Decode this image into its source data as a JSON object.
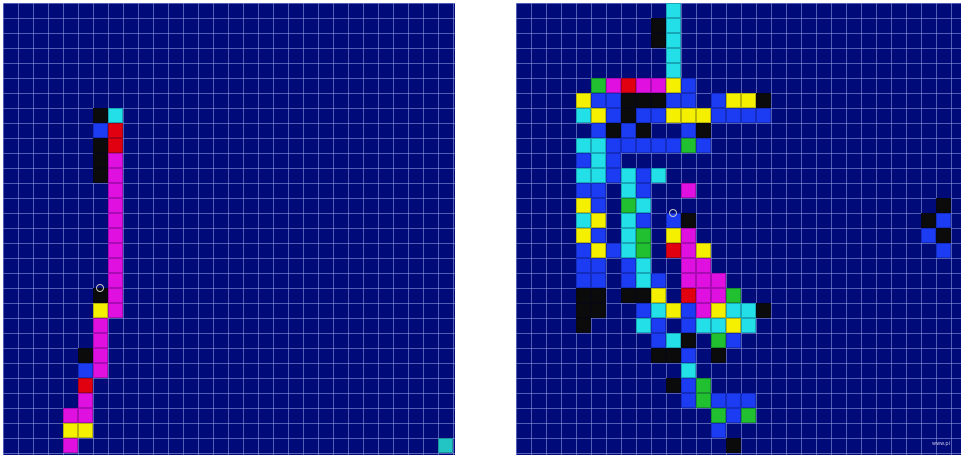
{
  "palette": {
    "k": "#0b0b0b",
    "c": "#22dfe8",
    "r": "#e00010",
    "m": "#e010e0",
    "y": "#f4f000",
    "b": "#1b3cf2",
    "g": "#20c030",
    "t": "#22c4c4"
  },
  "panels": [
    {
      "id": "left",
      "cells": [
        {
          "x": 6,
          "y": 7,
          "c": "k"
        },
        {
          "x": 7,
          "y": 7,
          "c": "c"
        },
        {
          "x": 6,
          "y": 8,
          "c": "b"
        },
        {
          "x": 7,
          "y": 8,
          "c": "r"
        },
        {
          "x": 6,
          "y": 9,
          "c": "k"
        },
        {
          "x": 7,
          "y": 9,
          "c": "r"
        },
        {
          "x": 6,
          "y": 10,
          "c": "k"
        },
        {
          "x": 7,
          "y": 10,
          "c": "m"
        },
        {
          "x": 6,
          "y": 11,
          "c": "k"
        },
        {
          "x": 7,
          "y": 11,
          "c": "m"
        },
        {
          "x": 7,
          "y": 12,
          "c": "m"
        },
        {
          "x": 7,
          "y": 13,
          "c": "m"
        },
        {
          "x": 7,
          "y": 14,
          "c": "m"
        },
        {
          "x": 7,
          "y": 15,
          "c": "m"
        },
        {
          "x": 7,
          "y": 16,
          "c": "m"
        },
        {
          "x": 7,
          "y": 17,
          "c": "m"
        },
        {
          "x": 7,
          "y": 18,
          "c": "m"
        },
        {
          "x": 6,
          "y": 19,
          "c": "k"
        },
        {
          "x": 7,
          "y": 19,
          "c": "m"
        },
        {
          "x": 6,
          "y": 20,
          "c": "y"
        },
        {
          "x": 7,
          "y": 20,
          "c": "m"
        },
        {
          "x": 6,
          "y": 21,
          "c": "m"
        },
        {
          "x": 6,
          "y": 22,
          "c": "m"
        },
        {
          "x": 5,
          "y": 23,
          "c": "k"
        },
        {
          "x": 6,
          "y": 23,
          "c": "m"
        },
        {
          "x": 5,
          "y": 24,
          "c": "b"
        },
        {
          "x": 6,
          "y": 24,
          "c": "m"
        },
        {
          "x": 5,
          "y": 25,
          "c": "r"
        },
        {
          "x": 5,
          "y": 26,
          "c": "m"
        },
        {
          "x": 4,
          "y": 27,
          "c": "m"
        },
        {
          "x": 5,
          "y": 27,
          "c": "m"
        },
        {
          "x": 4,
          "y": 28,
          "c": "y"
        },
        {
          "x": 5,
          "y": 28,
          "c": "y"
        },
        {
          "x": 4,
          "y": 29,
          "c": "m"
        },
        {
          "x": 29,
          "y": 29,
          "c": "t"
        }
      ],
      "markers": [
        {
          "x": 6,
          "y": 19
        }
      ]
    },
    {
      "id": "right",
      "cells": [
        {
          "x": 10,
          "y": 0,
          "c": "c"
        },
        {
          "x": 9,
          "y": 1,
          "c": "k"
        },
        {
          "x": 10,
          "y": 1,
          "c": "c"
        },
        {
          "x": 9,
          "y": 2,
          "c": "k"
        },
        {
          "x": 10,
          "y": 2,
          "c": "c"
        },
        {
          "x": 10,
          "y": 3,
          "c": "c"
        },
        {
          "x": 10,
          "y": 4,
          "c": "c"
        },
        {
          "x": 7,
          "y": 5,
          "c": "r"
        },
        {
          "x": 8,
          "y": 5,
          "c": "m"
        },
        {
          "x": 9,
          "y": 5,
          "c": "m"
        },
        {
          "x": 10,
          "y": 5,
          "c": "y"
        },
        {
          "x": 11,
          "y": 5,
          "c": "b"
        },
        {
          "x": 5,
          "y": 5,
          "c": "g"
        },
        {
          "x": 6,
          "y": 5,
          "c": "m"
        },
        {
          "x": 4,
          "y": 6,
          "c": "y"
        },
        {
          "x": 5,
          "y": 6,
          "c": "b"
        },
        {
          "x": 6,
          "y": 6,
          "c": "b"
        },
        {
          "x": 7,
          "y": 6,
          "c": "k"
        },
        {
          "x": 8,
          "y": 6,
          "c": "k"
        },
        {
          "x": 9,
          "y": 6,
          "c": "k"
        },
        {
          "x": 10,
          "y": 6,
          "c": "b"
        },
        {
          "x": 11,
          "y": 6,
          "c": "b"
        },
        {
          "x": 13,
          "y": 6,
          "c": "b"
        },
        {
          "x": 14,
          "y": 6,
          "c": "y"
        },
        {
          "x": 15,
          "y": 6,
          "c": "y"
        },
        {
          "x": 16,
          "y": 6,
          "c": "k"
        },
        {
          "x": 4,
          "y": 7,
          "c": "c"
        },
        {
          "x": 5,
          "y": 7,
          "c": "y"
        },
        {
          "x": 6,
          "y": 7,
          "c": "b"
        },
        {
          "x": 7,
          "y": 7,
          "c": "k"
        },
        {
          "x": 8,
          "y": 7,
          "c": "b"
        },
        {
          "x": 9,
          "y": 7,
          "c": "b"
        },
        {
          "x": 10,
          "y": 7,
          "c": "y"
        },
        {
          "x": 11,
          "y": 7,
          "c": "y"
        },
        {
          "x": 12,
          "y": 7,
          "c": "y"
        },
        {
          "x": 13,
          "y": 7,
          "c": "b"
        },
        {
          "x": 14,
          "y": 7,
          "c": "b"
        },
        {
          "x": 15,
          "y": 7,
          "c": "b"
        },
        {
          "x": 16,
          "y": 7,
          "c": "b"
        },
        {
          "x": 5,
          "y": 8,
          "c": "b"
        },
        {
          "x": 6,
          "y": 8,
          "c": "k"
        },
        {
          "x": 7,
          "y": 8,
          "c": "b"
        },
        {
          "x": 8,
          "y": 8,
          "c": "k"
        },
        {
          "x": 11,
          "y": 8,
          "c": "b"
        },
        {
          "x": 12,
          "y": 8,
          "c": "k"
        },
        {
          "x": 4,
          "y": 9,
          "c": "c"
        },
        {
          "x": 5,
          "y": 9,
          "c": "c"
        },
        {
          "x": 6,
          "y": 9,
          "c": "b"
        },
        {
          "x": 7,
          "y": 9,
          "c": "b"
        },
        {
          "x": 8,
          "y": 9,
          "c": "b"
        },
        {
          "x": 9,
          "y": 9,
          "c": "b"
        },
        {
          "x": 10,
          "y": 9,
          "c": "b"
        },
        {
          "x": 11,
          "y": 9,
          "c": "g"
        },
        {
          "x": 12,
          "y": 9,
          "c": "b"
        },
        {
          "x": 4,
          "y": 10,
          "c": "b"
        },
        {
          "x": 5,
          "y": 10,
          "c": "c"
        },
        {
          "x": 6,
          "y": 10,
          "c": "b"
        },
        {
          "x": 4,
          "y": 11,
          "c": "c"
        },
        {
          "x": 5,
          "y": 11,
          "c": "c"
        },
        {
          "x": 6,
          "y": 11,
          "c": "b"
        },
        {
          "x": 7,
          "y": 11,
          "c": "c"
        },
        {
          "x": 8,
          "y": 11,
          "c": "b"
        },
        {
          "x": 9,
          "y": 11,
          "c": "c"
        },
        {
          "x": 4,
          "y": 12,
          "c": "b"
        },
        {
          "x": 5,
          "y": 12,
          "c": "b"
        },
        {
          "x": 7,
          "y": 12,
          "c": "c"
        },
        {
          "x": 8,
          "y": 12,
          "c": "b"
        },
        {
          "x": 4,
          "y": 13,
          "c": "y"
        },
        {
          "x": 5,
          "y": 13,
          "c": "b"
        },
        {
          "x": 7,
          "y": 13,
          "c": "g"
        },
        {
          "x": 8,
          "y": 13,
          "c": "c"
        },
        {
          "x": 4,
          "y": 14,
          "c": "c"
        },
        {
          "x": 5,
          "y": 14,
          "c": "y"
        },
        {
          "x": 7,
          "y": 14,
          "c": "c"
        },
        {
          "x": 8,
          "y": 14,
          "c": "b"
        },
        {
          "x": 10,
          "y": 14,
          "c": "b"
        },
        {
          "x": 11,
          "y": 14,
          "c": "k"
        },
        {
          "x": 4,
          "y": 15,
          "c": "y"
        },
        {
          "x": 5,
          "y": 15,
          "c": "b"
        },
        {
          "x": 7,
          "y": 15,
          "c": "c"
        },
        {
          "x": 8,
          "y": 15,
          "c": "g"
        },
        {
          "x": 10,
          "y": 15,
          "c": "y"
        },
        {
          "x": 11,
          "y": 15,
          "c": "m"
        },
        {
          "x": 4,
          "y": 16,
          "c": "b"
        },
        {
          "x": 5,
          "y": 16,
          "c": "y"
        },
        {
          "x": 6,
          "y": 16,
          "c": "b"
        },
        {
          "x": 7,
          "y": 16,
          "c": "c"
        },
        {
          "x": 8,
          "y": 16,
          "c": "g"
        },
        {
          "x": 10,
          "y": 16,
          "c": "r"
        },
        {
          "x": 11,
          "y": 16,
          "c": "m"
        },
        {
          "x": 12,
          "y": 16,
          "c": "y"
        },
        {
          "x": 4,
          "y": 17,
          "c": "b"
        },
        {
          "x": 5,
          "y": 17,
          "c": "b"
        },
        {
          "x": 7,
          "y": 17,
          "c": "b"
        },
        {
          "x": 8,
          "y": 17,
          "c": "c"
        },
        {
          "x": 11,
          "y": 17,
          "c": "m"
        },
        {
          "x": 12,
          "y": 17,
          "c": "m"
        },
        {
          "x": 4,
          "y": 18,
          "c": "b"
        },
        {
          "x": 5,
          "y": 18,
          "c": "b"
        },
        {
          "x": 7,
          "y": 18,
          "c": "b"
        },
        {
          "x": 8,
          "y": 18,
          "c": "c"
        },
        {
          "x": 9,
          "y": 18,
          "c": "b"
        },
        {
          "x": 11,
          "y": 18,
          "c": "m"
        },
        {
          "x": 12,
          "y": 18,
          "c": "m"
        },
        {
          "x": 13,
          "y": 18,
          "c": "m"
        },
        {
          "x": 4,
          "y": 19,
          "c": "k"
        },
        {
          "x": 5,
          "y": 19,
          "c": "k"
        },
        {
          "x": 7,
          "y": 19,
          "c": "k"
        },
        {
          "x": 8,
          "y": 19,
          "c": "k"
        },
        {
          "x": 9,
          "y": 19,
          "c": "y"
        },
        {
          "x": 11,
          "y": 19,
          "c": "r"
        },
        {
          "x": 12,
          "y": 19,
          "c": "m"
        },
        {
          "x": 13,
          "y": 19,
          "c": "m"
        },
        {
          "x": 14,
          "y": 19,
          "c": "g"
        },
        {
          "x": 4,
          "y": 20,
          "c": "k"
        },
        {
          "x": 5,
          "y": 20,
          "c": "k"
        },
        {
          "x": 8,
          "y": 20,
          "c": "b"
        },
        {
          "x": 9,
          "y": 20,
          "c": "c"
        },
        {
          "x": 10,
          "y": 20,
          "c": "y"
        },
        {
          "x": 11,
          "y": 20,
          "c": "b"
        },
        {
          "x": 12,
          "y": 20,
          "c": "m"
        },
        {
          "x": 13,
          "y": 20,
          "c": "y"
        },
        {
          "x": 14,
          "y": 20,
          "c": "c"
        },
        {
          "x": 15,
          "y": 20,
          "c": "c"
        },
        {
          "x": 16,
          "y": 20,
          "c": "k"
        },
        {
          "x": 4,
          "y": 21,
          "c": "k"
        },
        {
          "x": 8,
          "y": 21,
          "c": "c"
        },
        {
          "x": 9,
          "y": 21,
          "c": "b"
        },
        {
          "x": 11,
          "y": 21,
          "c": "b"
        },
        {
          "x": 12,
          "y": 21,
          "c": "c"
        },
        {
          "x": 13,
          "y": 21,
          "c": "c"
        },
        {
          "x": 14,
          "y": 21,
          "c": "y"
        },
        {
          "x": 15,
          "y": 21,
          "c": "c"
        },
        {
          "x": 9,
          "y": 22,
          "c": "b"
        },
        {
          "x": 10,
          "y": 22,
          "c": "c"
        },
        {
          "x": 11,
          "y": 22,
          "c": "k"
        },
        {
          "x": 13,
          "y": 22,
          "c": "g"
        },
        {
          "x": 14,
          "y": 22,
          "c": "b"
        },
        {
          "x": 9,
          "y": 23,
          "c": "k"
        },
        {
          "x": 10,
          "y": 23,
          "c": "k"
        },
        {
          "x": 11,
          "y": 23,
          "c": "b"
        },
        {
          "x": 13,
          "y": 23,
          "c": "k"
        },
        {
          "x": 11,
          "y": 24,
          "c": "c"
        },
        {
          "x": 10,
          "y": 25,
          "c": "k"
        },
        {
          "x": 11,
          "y": 25,
          "c": "b"
        },
        {
          "x": 12,
          "y": 25,
          "c": "g"
        },
        {
          "x": 11,
          "y": 26,
          "c": "b"
        },
        {
          "x": 12,
          "y": 26,
          "c": "g"
        },
        {
          "x": 13,
          "y": 26,
          "c": "b"
        },
        {
          "x": 14,
          "y": 26,
          "c": "b"
        },
        {
          "x": 15,
          "y": 26,
          "c": "b"
        },
        {
          "x": 13,
          "y": 27,
          "c": "g"
        },
        {
          "x": 14,
          "y": 27,
          "c": "b"
        },
        {
          "x": 15,
          "y": 27,
          "c": "g"
        },
        {
          "x": 13,
          "y": 28,
          "c": "b"
        },
        {
          "x": 14,
          "y": 29,
          "c": "k"
        },
        {
          "x": 28,
          "y": 13,
          "c": "k"
        },
        {
          "x": 27,
          "y": 14,
          "c": "k"
        },
        {
          "x": 28,
          "y": 14,
          "c": "b"
        },
        {
          "x": 27,
          "y": 15,
          "c": "b"
        },
        {
          "x": 28,
          "y": 15,
          "c": "k"
        },
        {
          "x": 28,
          "y": 16,
          "c": "b"
        },
        {
          "x": 11,
          "y": 12,
          "c": "m"
        }
      ],
      "markers": [
        {
          "x": 10,
          "y": 14
        }
      ],
      "watermark": "www.pi"
    }
  ]
}
